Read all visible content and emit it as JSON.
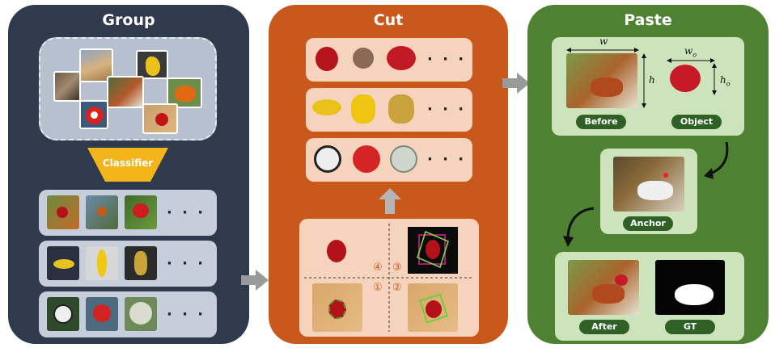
{
  "panels": {
    "group": {
      "title": "Group",
      "classifier_label": "Classifier",
      "ellipsis": "· · ·"
    },
    "cut": {
      "title": "Cut",
      "ellipsis": "· · ·",
      "steps": {
        "one": "①",
        "two": "②",
        "three": "③",
        "four": "④"
      }
    },
    "paste": {
      "title": "Paste",
      "labels": {
        "before": "Before",
        "object": "Object",
        "anchor": "Anchor",
        "after": "After",
        "gt": "GT"
      },
      "dims": {
        "w": "w",
        "h": "h",
        "wo_base": "w",
        "wo_sub": "o",
        "ho_base": "h",
        "ho_sub": "o"
      }
    }
  },
  "colors": {
    "group_bg": "#2f3a4c",
    "cut_bg": "#c9581c",
    "paste_bg": "#4e8232",
    "group_card": "#c7cedb",
    "cut_card": "#f6d3bc",
    "paste_card": "#cde3bb",
    "classifier": "#f3b51b",
    "arrow_gray": "#9a9a9a"
  }
}
